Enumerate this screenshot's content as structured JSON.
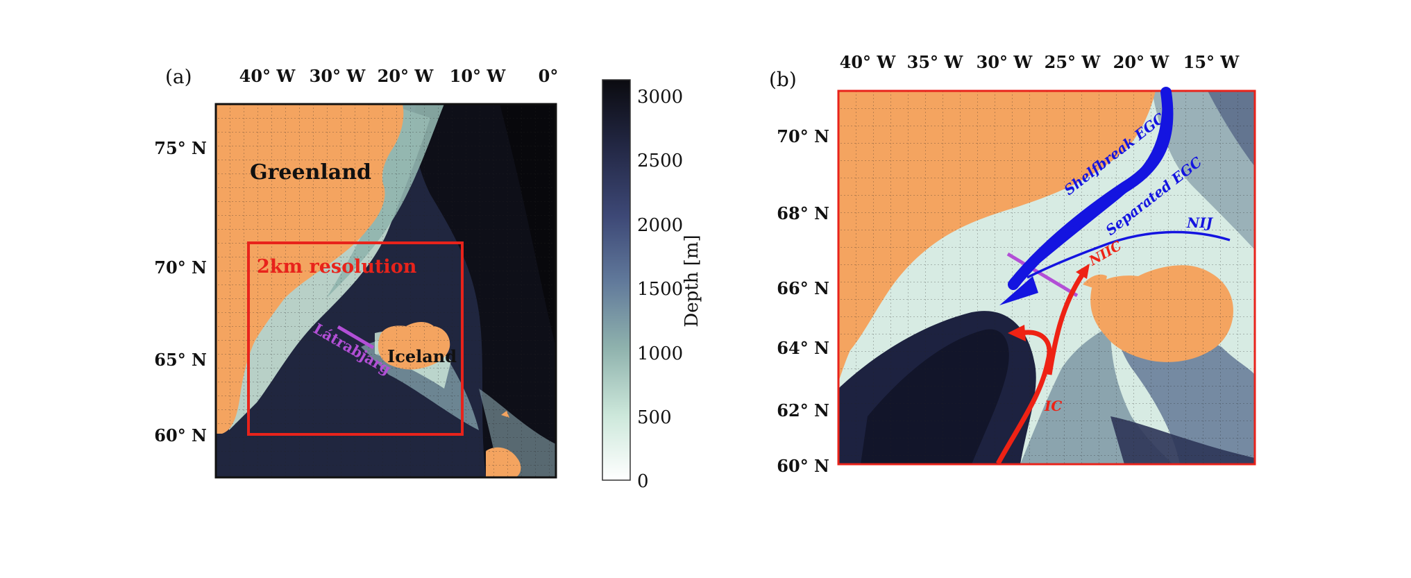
{
  "panel_a": {
    "label": "(a)",
    "lon_labels": [
      "40° W",
      "30° W",
      "20° W",
      "10° W",
      "0°"
    ],
    "lat_labels": [
      "75° N",
      "70° N",
      "65° N",
      "60° N"
    ],
    "greenland_label": "Greenland",
    "iceland_label": "Iceland",
    "section_label": "Látrabjarg",
    "domain_label": "2km resolution"
  },
  "colorbar": {
    "ticks": [
      "3000",
      "2500",
      "2000",
      "1500",
      "1000",
      "500",
      "0"
    ],
    "label": "Depth [m]"
  },
  "panel_b": {
    "label": "(b)",
    "lon_labels": [
      "40° W",
      "35° W",
      "30° W",
      "25° W",
      "20° W",
      "15° W"
    ],
    "lat_labels": [
      "70° N",
      "68° N",
      "66° N",
      "64° N",
      "62° N",
      "60° N"
    ],
    "currents": {
      "shelfbreak_egc": "Shelfbreak EGC",
      "separated_egc": "Separated EGC",
      "nij": "NIJ",
      "nijc": "NIIC",
      "ic": "IC"
    }
  },
  "colors": {
    "land": "#f4a460",
    "deep_ocean": "#0d0d14",
    "shallow_ocean": "#f2f8f5",
    "domain_box": "#e8231b",
    "section_line": "#b24fd6",
    "cold_current": "#1414e0",
    "warm_current": "#ee2214"
  }
}
